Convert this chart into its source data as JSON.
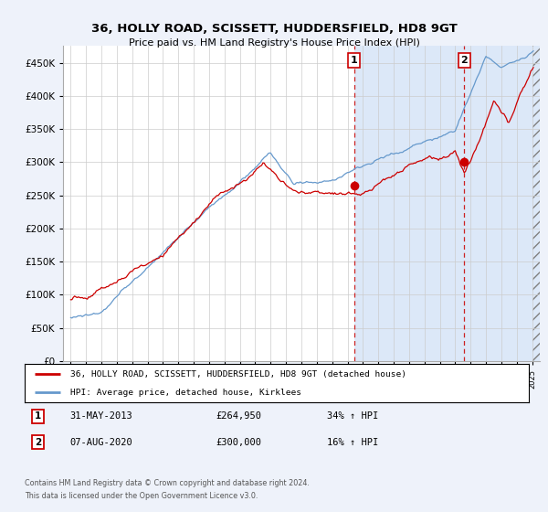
{
  "title": "36, HOLLY ROAD, SCISSETT, HUDDERSFIELD, HD8 9GT",
  "subtitle": "Price paid vs. HM Land Registry's House Price Index (HPI)",
  "legend_line1": "36, HOLLY ROAD, SCISSETT, HUDDERSFIELD, HD8 9GT (detached house)",
  "legend_line2": "HPI: Average price, detached house, Kirklees",
  "annotation1_date": "31-MAY-2013",
  "annotation1_price": "£264,950",
  "annotation1_hpi": "34% ↑ HPI",
  "annotation2_date": "07-AUG-2020",
  "annotation2_price": "£300,000",
  "annotation2_hpi": "16% ↑ HPI",
  "footnote1": "Contains HM Land Registry data © Crown copyright and database right 2024.",
  "footnote2": "This data is licensed under the Open Government Licence v3.0.",
  "ylim": [
    0,
    475000
  ],
  "yticks": [
    0,
    50000,
    100000,
    150000,
    200000,
    250000,
    300000,
    350000,
    400000,
    450000
  ],
  "xlim_start": 1994.5,
  "xlim_end": 2025.5,
  "purchase1_year": 2013.42,
  "purchase1_price": 264950,
  "purchase2_year": 2020.58,
  "purchase2_price": 300000,
  "red_color": "#cc0000",
  "blue_color": "#6699cc",
  "dashed_color": "#cc2222",
  "background_color": "#eef2fa",
  "plot_bg": "#ffffff",
  "highlight_bg": "#dce8f8"
}
